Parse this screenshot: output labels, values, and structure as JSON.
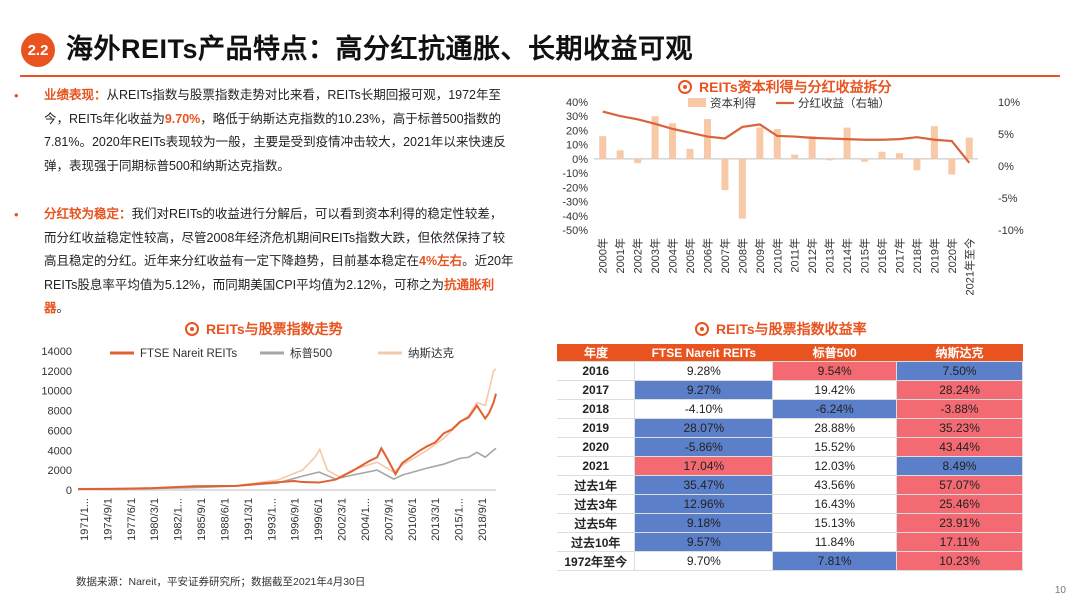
{
  "header": {
    "section": "2.2",
    "title": "海外REITs产品特点：高分红抗通胀、长期收益可观"
  },
  "bullets": [
    {
      "lead": "业绩表现：",
      "p1": "从REITs指数与股票指数走势对比来看，REITs长期回报可观，1972年至今，REITs年化收益为",
      "hl1": "9.70%",
      "p2": "，略低于纳斯达克指数的10.23%，高于标普500指数的7.81%。2020年REITs表现较为一般，主要是受到疫情冲击较大，2021年以来快速反弹，表现强于同期标普500和纳斯达克指数。"
    },
    {
      "lead": "分红较为稳定：",
      "p1": "我们对REITs的收益进行分解后，可以看到资本利得的稳定性较差，而分红收益稳定性较高，尽管2008年经济危机期间REITs指数大跌，但依然保持了较高且稳定的分红。近年来分红收益有一定下降趋势，目前基本稳定在",
      "hl1": "4%左右",
      "p2": "。近20年REITs股息率平均值为5.12%，而同期美国CPI平均值为2.12%，可称之为",
      "hl2": "抗通胀利器",
      "p3": "。"
    }
  ],
  "chart_data": [
    {
      "type": "bar+line",
      "title": "REITs资本利得与分红收益拆分",
      "categories": [
        "2000年",
        "2001年",
        "2002年",
        "2003年",
        "2004年",
        "2005年",
        "2006年",
        "2007年",
        "2008年",
        "2009年",
        "2010年",
        "2011年",
        "2012年",
        "2013年",
        "2014年",
        "2015年",
        "2016年",
        "2017年",
        "2018年",
        "2019年",
        "2020年",
        "2021年至今"
      ],
      "series": [
        {
          "name": "资本利得",
          "kind": "bar",
          "axis": "left",
          "values": [
            16,
            6,
            -3,
            30,
            25,
            7,
            28,
            -22,
            -42,
            22,
            21,
            3,
            16,
            -1,
            22,
            -2,
            5,
            4,
            -8,
            23,
            -11,
            15
          ]
        },
        {
          "name": "分红收益（右轴）",
          "kind": "line",
          "axis": "right",
          "values": [
            8.5,
            7.8,
            7.3,
            6.6,
            5.8,
            5.2,
            4.6,
            4.3,
            6.1,
            6.5,
            4.7,
            4.6,
            4.4,
            4.3,
            4.2,
            4.1,
            4.1,
            4.2,
            4.5,
            4.1,
            3.9,
            0.5
          ]
        }
      ],
      "ylim": [
        -50,
        40
      ],
      "yticks": [
        "40%",
        "30%",
        "20%",
        "10%",
        "0%",
        "-10%",
        "-20%",
        "-30%",
        "-40%",
        "-50%"
      ],
      "ylim_right": [
        -10,
        10
      ],
      "yticks_right": [
        "10%",
        "5%",
        "0%",
        "-5%",
        "-10%"
      ]
    },
    {
      "type": "line",
      "title": "REITs与股票指数走势",
      "series_names": [
        "FTSE Nareit REITs",
        "标普500",
        "纳斯达克"
      ],
      "series_colors": [
        "#e06030",
        "#a6a6a6",
        "#f5c9a8"
      ],
      "xticks": [
        "1971/1...",
        "1974/9/1",
        "1977/6/1",
        "1980/3/1",
        "1982/1...",
        "1985/9/1",
        "1988/6/1",
        "1991/3/1",
        "1993/1...",
        "1996/9/1",
        "1999/6/1",
        "2002/3/1",
        "2004/1...",
        "2007/9/1",
        "2010/6/1",
        "2013/3/1",
        "2015/1...",
        "2018/9/1"
      ],
      "ylim": [
        0,
        14000
      ],
      "yticks": [
        "14000",
        "12000",
        "10000",
        "8000",
        "6000",
        "4000",
        "2000",
        "0"
      ],
      "x_range": [
        1971,
        2021.3
      ],
      "reits": [
        [
          1971,
          100
        ],
        [
          1975,
          110
        ],
        [
          1980,
          190
        ],
        [
          1985,
          380
        ],
        [
          1990,
          420
        ],
        [
          1993,
          650
        ],
        [
          1997,
          900
        ],
        [
          1998,
          800
        ],
        [
          2000,
          750
        ],
        [
          2002,
          1050
        ],
        [
          2004,
          1900
        ],
        [
          2006,
          2900
        ],
        [
          2007,
          3300
        ],
        [
          2007.5,
          4200
        ],
        [
          2008.2,
          3200
        ],
        [
          2009.2,
          1600
        ],
        [
          2010,
          2700
        ],
        [
          2012,
          3900
        ],
        [
          2013,
          4400
        ],
        [
          2014,
          4800
        ],
        [
          2015,
          5700
        ],
        [
          2016,
          6100
        ],
        [
          2017,
          6900
        ],
        [
          2018,
          7300
        ],
        [
          2019,
          8500
        ],
        [
          2020,
          7200
        ],
        [
          2020.5,
          7800
        ],
        [
          2021,
          8800
        ],
        [
          2021.3,
          9700
        ]
      ],
      "sp500": [
        [
          1971,
          100
        ],
        [
          1980,
          150
        ],
        [
          1985,
          250
        ],
        [
          1990,
          400
        ],
        [
          1995,
          700
        ],
        [
          1998,
          1400
        ],
        [
          2000,
          1800
        ],
        [
          2002,
          1100
        ],
        [
          2004,
          1500
        ],
        [
          2007,
          2000
        ],
        [
          2009,
          1100
        ],
        [
          2010,
          1500
        ],
        [
          2013,
          2200
        ],
        [
          2015,
          2600
        ],
        [
          2017,
          3200
        ],
        [
          2018,
          3300
        ],
        [
          2019,
          3800
        ],
        [
          2020,
          3300
        ],
        [
          2021,
          4000
        ],
        [
          2021.3,
          4200
        ]
      ],
      "nasdaq": [
        [
          1971,
          100
        ],
        [
          1980,
          180
        ],
        [
          1985,
          300
        ],
        [
          1990,
          430
        ],
        [
          1995,
          1000
        ],
        [
          1998,
          2000
        ],
        [
          1999.5,
          3300
        ],
        [
          2000.1,
          4100
        ],
        [
          2001,
          2000
        ],
        [
          2002.5,
          1300
        ],
        [
          2004,
          2000
        ],
        [
          2007,
          2800
        ],
        [
          2009,
          1800
        ],
        [
          2010,
          2500
        ],
        [
          2013,
          4000
        ],
        [
          2015,
          5200
        ],
        [
          2017,
          6800
        ],
        [
          2018,
          7500
        ],
        [
          2019,
          8800
        ],
        [
          2020,
          8500
        ],
        [
          2020.6,
          10500
        ],
        [
          2021,
          12000
        ],
        [
          2021.3,
          12200
        ]
      ]
    },
    {
      "type": "table",
      "title": "REITs与股票指数收益率",
      "columns": [
        "年度",
        "FTSE Nareit REITs",
        "标普500",
        "纳斯达克"
      ],
      "rows": [
        {
          "label": "2016",
          "cells": [
            "9.28%",
            "9.54%",
            "7.50%"
          ],
          "colors": [
            "",
            "red",
            "blue"
          ]
        },
        {
          "label": "2017",
          "cells": [
            "9.27%",
            "19.42%",
            "28.24%"
          ],
          "colors": [
            "blue",
            "",
            "red"
          ]
        },
        {
          "label": "2018",
          "cells": [
            "-4.10%",
            "-6.24%",
            "-3.88%"
          ],
          "colors": [
            "",
            "blue",
            "red"
          ]
        },
        {
          "label": "2019",
          "cells": [
            "28.07%",
            "28.88%",
            "35.23%"
          ],
          "colors": [
            "blue",
            "",
            "red"
          ]
        },
        {
          "label": "2020",
          "cells": [
            "-5.86%",
            "15.52%",
            "43.44%"
          ],
          "colors": [
            "blue",
            "",
            "red"
          ]
        },
        {
          "label": "2021",
          "cells": [
            "17.04%",
            "12.03%",
            "8.49%"
          ],
          "colors": [
            "red",
            "",
            "blue"
          ]
        },
        {
          "label": "过去1年",
          "cells": [
            "35.47%",
            "43.56%",
            "57.07%"
          ],
          "colors": [
            "blue",
            "",
            "red"
          ]
        },
        {
          "label": "过去3年",
          "cells": [
            "12.96%",
            "16.43%",
            "25.46%"
          ],
          "colors": [
            "blue",
            "",
            "red"
          ]
        },
        {
          "label": "过去5年",
          "cells": [
            "9.18%",
            "15.13%",
            "23.91%"
          ],
          "colors": [
            "blue",
            "",
            "red"
          ]
        },
        {
          "label": "过去10年",
          "cells": [
            "9.57%",
            "11.84%",
            "17.11%"
          ],
          "colors": [
            "blue",
            "",
            "red"
          ]
        },
        {
          "label": "1972年至今",
          "cells": [
            "9.70%",
            "7.81%",
            "10.23%"
          ],
          "colors": [
            "",
            "blue",
            "red"
          ]
        }
      ]
    }
  ],
  "footer": {
    "source": "数据来源：Nareit，平安证券研究所；数据截至2021年4月30日",
    "page": "10"
  },
  "colors": {
    "accent": "#e8531f",
    "bar": "#f8c9a6",
    "line": "#d9633a",
    "table_blue": "#5b7fc9",
    "table_red": "#f36a72"
  }
}
